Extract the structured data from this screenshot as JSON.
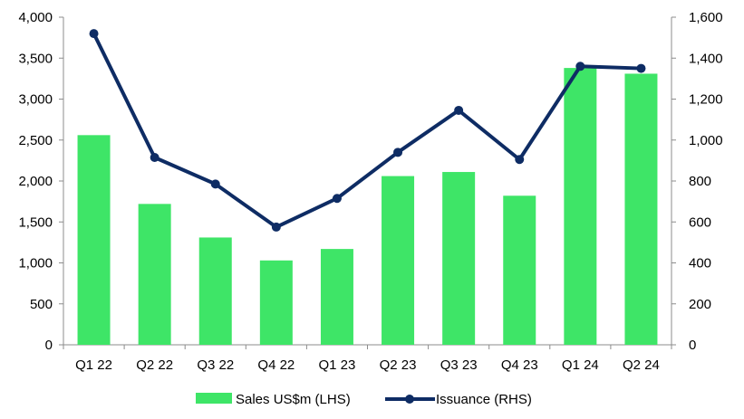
{
  "chart_data": {
    "type": "bar+line",
    "categories": [
      "Q1 22",
      "Q2 22",
      "Q3 22",
      "Q4 22",
      "Q1 23",
      "Q2 23",
      "Q3 23",
      "Q4 23",
      "Q1 24",
      "Q2 24"
    ],
    "series": [
      {
        "name": "Sales US$m (LHS)",
        "type": "bar",
        "axis": "left",
        "color": "#3ee567",
        "values": [
          2560,
          1720,
          1310,
          1030,
          1170,
          2060,
          2110,
          1820,
          3380,
          3310
        ]
      },
      {
        "name": "Issuance (RHS)",
        "type": "line",
        "axis": "right",
        "color": "#0e2c64",
        "values": [
          1520,
          915,
          785,
          575,
          715,
          940,
          1145,
          905,
          1360,
          1350
        ]
      }
    ],
    "y_left": {
      "min": 0,
      "max": 4000,
      "ticks": [
        "0",
        "500",
        "1,000",
        "1,500",
        "2,000",
        "2,500",
        "3,000",
        "3,500",
        "4,000"
      ]
    },
    "y_right": {
      "min": 0,
      "max": 1600,
      "ticks": [
        "0",
        "200",
        "400",
        "600",
        "800",
        "1,000",
        "1,200",
        "1,400",
        "1,600"
      ]
    },
    "grid": false,
    "legend_position": "bottom"
  }
}
